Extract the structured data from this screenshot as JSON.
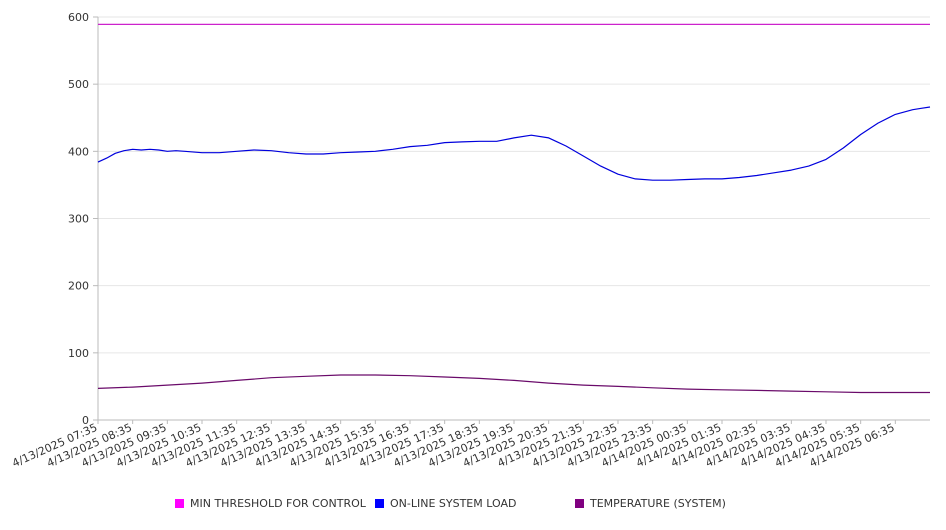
{
  "chart_data": {
    "type": "line",
    "title": "",
    "xlabel": "",
    "ylabel": "",
    "ylim": [
      0,
      600
    ],
    "y_ticks": [
      "0",
      "100",
      "200",
      "300",
      "400",
      "500",
      "600"
    ],
    "y_tick_values": [
      0,
      100,
      200,
      300,
      400,
      500,
      600
    ],
    "grid": "horizontal",
    "legend_position": "bottom",
    "x_tick_labels": [
      "4/13/2025 07:35",
      "4/13/2025 08:35",
      "4/13/2025 09:35",
      "4/13/2025 10:35",
      "4/13/2025 11:35",
      "4/13/2025 12:35",
      "4/13/2025 13:35",
      "4/13/2025 14:35",
      "4/13/2025 15:35",
      "4/13/2025 16:35",
      "4/13/2025 17:35",
      "4/13/2025 18:35",
      "4/13/2025 19:35",
      "4/13/2025 20:35",
      "4/13/2025 21:35",
      "4/13/2025 22:35",
      "4/13/2025 23:35",
      "4/14/2025 00:35",
      "4/14/2025 01:35",
      "4/14/2025 02:35",
      "4/14/2025 03:35",
      "4/14/2025 04:35",
      "4/14/2025 05:35",
      "4/14/2025 06:35"
    ],
    "x_tick_hours": [
      0,
      1,
      2,
      3,
      4,
      5,
      6,
      7,
      8,
      9,
      10,
      11,
      12,
      13,
      14,
      15,
      16,
      17,
      18,
      19,
      20,
      21,
      22,
      23
    ],
    "x_range_hours": [
      0,
      24
    ],
    "series": [
      {
        "name": "MIN THRESHOLD FOR CONTROL",
        "color": "#cc22cc",
        "swatch": "#ff00ff",
        "x": [
          0,
          24
        ],
        "values": [
          589,
          589
        ]
      },
      {
        "name": "ON-LINE SYSTEM LOAD",
        "color": "#0000dd",
        "swatch": "#0000ff",
        "x": [
          0,
          0.25,
          0.5,
          0.75,
          1,
          1.25,
          1.5,
          1.75,
          2,
          2.25,
          2.5,
          3,
          3.5,
          4,
          4.5,
          5,
          5.5,
          6,
          6.5,
          7,
          7.5,
          8,
          8.5,
          9,
          9.5,
          10,
          10.5,
          11,
          11.5,
          12,
          12.5,
          13,
          13.25,
          13.5,
          14,
          14.5,
          15,
          15.5,
          16,
          16.5,
          17,
          17.5,
          18,
          18.5,
          19,
          19.5,
          20,
          20.5,
          21,
          21.5,
          22,
          22.5,
          23,
          23.5,
          23.75,
          24
        ],
        "values": [
          384,
          390,
          397,
          401,
          403,
          402,
          403,
          402,
          400,
          401,
          400,
          398,
          398,
          400,
          402,
          401,
          398,
          396,
          396,
          398,
          399,
          400,
          403,
          407,
          409,
          413,
          414,
          415,
          415,
          420,
          424,
          420,
          414,
          408,
          393,
          378,
          366,
          359,
          357,
          357,
          358,
          359,
          359,
          361,
          364,
          368,
          372,
          378,
          388,
          405,
          425,
          442,
          455,
          462,
          464,
          466
        ]
      },
      {
        "name": "TEMPERATURE (SYSTEM)",
        "color": "#6a0a6a",
        "swatch": "#800080",
        "x": [
          0,
          1,
          2,
          3,
          4,
          5,
          6,
          7,
          8,
          9,
          10,
          11,
          12,
          13,
          14,
          15,
          16,
          17,
          18,
          19,
          20,
          21,
          22,
          23,
          24
        ],
        "values": [
          47,
          49,
          52,
          55,
          59,
          63,
          65,
          67,
          67,
          66,
          64,
          62,
          59,
          55,
          52,
          50,
          48,
          46,
          45,
          44,
          43,
          42,
          41,
          41,
          41
        ]
      }
    ]
  }
}
